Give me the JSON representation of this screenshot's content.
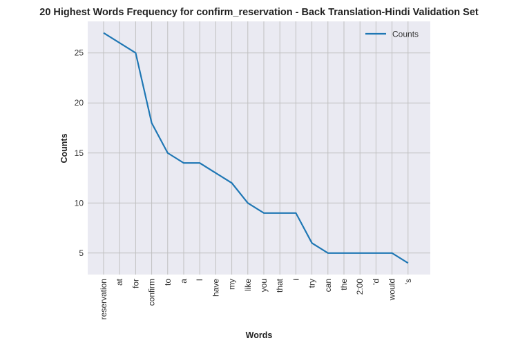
{
  "chart_data": {
    "type": "line",
    "title": "20 Highest Words Frequency for confirm_reservation - Back Translation-Hindi Validation Set",
    "xlabel": "Words",
    "ylabel": "Counts",
    "categories": [
      "reservation",
      "at",
      "for",
      "confirm",
      "to",
      "a",
      "I",
      "have",
      "my",
      "like",
      "you",
      "that",
      "i",
      "try",
      "can",
      "the",
      "2:00",
      "'d",
      "would",
      "'s"
    ],
    "series": [
      {
        "name": "Counts",
        "values": [
          27,
          26,
          25,
          18,
          15,
          14,
          14,
          13,
          12,
          10,
          9,
          9,
          9,
          6,
          5,
          5,
          5,
          5,
          5,
          4
        ]
      }
    ],
    "ylim": [
      2.85,
      28.15
    ],
    "yticks": [
      5,
      10,
      15,
      20,
      25
    ],
    "grid": true,
    "legend_position": "top-right",
    "colors": {
      "series": "#1f77b4",
      "background": "#eaeaf2",
      "grid": "#c0c0c0"
    }
  }
}
